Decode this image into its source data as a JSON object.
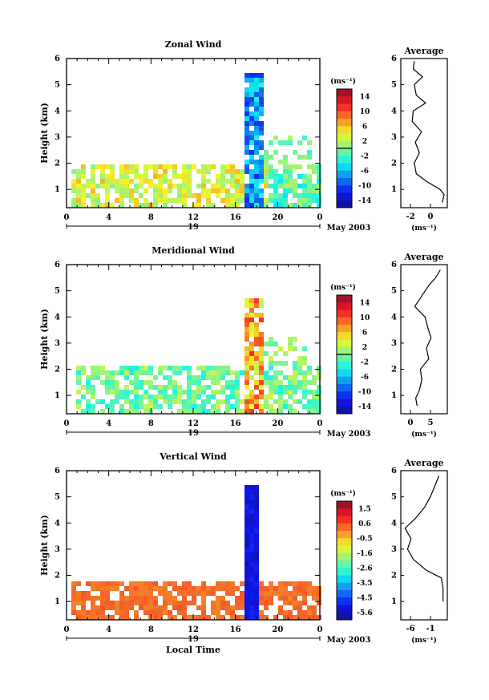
{
  "panels": [
    {
      "title": "Zonal Wind",
      "ylabel": "Height (km)",
      "yticks": [
        "1",
        "2",
        "3",
        "4",
        "5",
        "6"
      ],
      "xticks": [
        "0",
        "4",
        "8",
        "12",
        "16",
        "20",
        "0"
      ],
      "day_label": "19",
      "month_label": "May 2003",
      "colorbar": {
        "unit": "(ms⁻¹)",
        "ticks": [
          "14",
          "10",
          "6",
          "2",
          "-2",
          "-6",
          "-10",
          "-14"
        ],
        "range": [
          -16,
          16
        ],
        "marked_value": 0
      },
      "average": {
        "title": "Average",
        "xticks": [
          "-2",
          "0"
        ],
        "xlabel": "(ms⁻¹)"
      }
    },
    {
      "title": "Meridional Wind",
      "ylabel": "Height (km)",
      "yticks": [
        "1",
        "2",
        "3",
        "4",
        "5",
        "6"
      ],
      "xticks": [
        "0",
        "4",
        "8",
        "12",
        "16",
        "20",
        "0"
      ],
      "day_label": "19",
      "month_label": "May 2003",
      "colorbar": {
        "unit": "(ms⁻¹)",
        "ticks": [
          "14",
          "10",
          "6",
          "2",
          "-2",
          "-6",
          "-10",
          "-14"
        ],
        "range": [
          -16,
          16
        ],
        "marked_value": 0
      },
      "average": {
        "title": "Average",
        "xticks": [
          "0",
          "5"
        ],
        "xlabel": "(ms⁻¹)"
      }
    },
    {
      "title": "Vertical Wind",
      "ylabel": "Height (km)",
      "yticks": [
        "1",
        "2",
        "3",
        "4",
        "5",
        "6"
      ],
      "xticks": [
        "0",
        "4",
        "8",
        "12",
        "16",
        "20",
        "0"
      ],
      "day_label": "19",
      "month_label": "May 2003",
      "xlabel": "Local Time",
      "colorbar": {
        "unit": "(ms⁻¹)",
        "ticks": [
          "1.5",
          "0.6",
          "-0.5",
          "-1.6",
          "-2.6",
          "-3.5",
          "-4.5",
          "-5.6"
        ],
        "range": [
          -6,
          2
        ]
      },
      "average": {
        "title": "Average",
        "xticks": [
          "-6",
          "-1"
        ],
        "xlabel": "(ms⁻¹)"
      }
    }
  ],
  "chart_data": [
    {
      "type": "heatmap",
      "title": "Zonal Wind",
      "ylabel": "Height (km)",
      "xlim": [
        0,
        24
      ],
      "ylim": [
        0.3,
        6
      ],
      "colorbar_range": [
        -16,
        16
      ],
      "contour_level": 0,
      "description_of_field": "mostly weak positive (green/yellow) winds below 2 km; strong negative (blue) winds near 17-18 h extending to 5.5 km",
      "average_profile": {
        "xlim": [
          -3,
          1.5
        ],
        "heights": [
          0.5,
          0.8,
          1.0,
          1.3,
          1.6,
          2.0,
          2.4,
          2.8,
          3.2,
          3.6,
          4.0,
          4.3,
          4.6,
          5.0,
          5.3,
          5.6,
          5.9
        ],
        "values": [
          1.0,
          1.2,
          0.8,
          -0.5,
          -1.5,
          -1.7,
          -1.2,
          -1.6,
          -1.0,
          -1.9,
          -1.8,
          -0.6,
          -1.5,
          -1.7,
          -0.9,
          -1.8,
          -1.7
        ]
      }
    },
    {
      "type": "heatmap",
      "title": "Meridional Wind",
      "ylabel": "Height (km)",
      "xlim": [
        0,
        24
      ],
      "ylim": [
        0.3,
        6
      ],
      "colorbar_range": [
        -16,
        16
      ],
      "contour_level": 0,
      "average_profile": {
        "xlim": [
          -3,
          7
        ],
        "heights": [
          0.6,
          0.9,
          1.2,
          1.6,
          2.0,
          2.4,
          2.8,
          3.2,
          3.6,
          4.0,
          4.4,
          4.8,
          5.2,
          5.5,
          5.8
        ],
        "values": [
          0.5,
          0.2,
          1.0,
          1.5,
          1.2,
          3.0,
          2.5,
          3.5,
          2.8,
          2.2,
          0.0,
          1.5,
          3.0,
          4.5,
          5.5
        ]
      }
    },
    {
      "type": "heatmap",
      "title": "Vertical Wind",
      "ylabel": "Height (km)",
      "xlabel": "Local Time",
      "xlim": [
        0,
        24
      ],
      "ylim": [
        0.3,
        6
      ],
      "colorbar_range": [
        -6,
        2
      ],
      "average_profile": {
        "xlim": [
          -6,
          -0.5
        ],
        "heights": [
          1.0,
          1.5,
          1.9,
          2.2,
          2.6,
          3.0,
          3.4,
          3.8,
          4.2,
          4.6,
          5.0,
          5.4,
          5.8
        ],
        "values": [
          -1.0,
          -1.0,
          -1.2,
          -3.0,
          -4.5,
          -5.2,
          -4.8,
          -5.5,
          -4.2,
          -3.2,
          -2.5,
          -2.0,
          -1.5
        ]
      }
    }
  ]
}
